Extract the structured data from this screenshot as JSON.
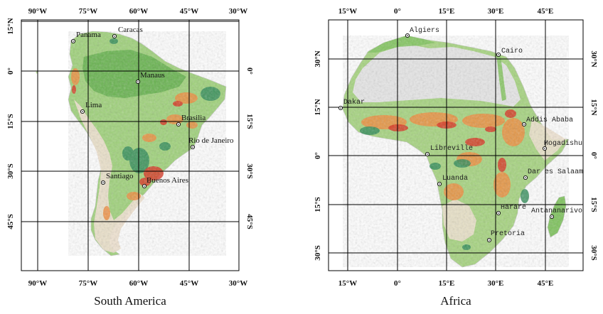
{
  "maps": [
    {
      "caption": "South America",
      "lon_ticks": [
        "90°W",
        "75°W",
        "60°W",
        "45°W",
        "30°W"
      ],
      "lat_ticks": [
        "15°N",
        "0°",
        "15°S",
        "30°S",
        "45°S"
      ],
      "cities": [
        {
          "name": "Panama"
        },
        {
          "name": "Caracas"
        },
        {
          "name": "Manaus"
        },
        {
          "name": "Lima"
        },
        {
          "name": "Brasilia"
        },
        {
          "name": "Rio de Janeiro"
        },
        {
          "name": "Santiago"
        },
        {
          "name": "Buenos Aires"
        }
      ]
    },
    {
      "caption": "Africa",
      "lon_ticks": [
        "15°W",
        "0°",
        "15°E",
        "30°E",
        "45°E"
      ],
      "lat_ticks": [
        "30°N",
        "15°N",
        "0°",
        "15°S",
        "30°S"
      ],
      "cities": [
        {
          "name": "Algiers"
        },
        {
          "name": "Cairo"
        },
        {
          "name": "Dakar"
        },
        {
          "name": "Addis Ababa"
        },
        {
          "name": "Mogadishu"
        },
        {
          "name": "Libreville"
        },
        {
          "name": "Dar es Salaam"
        },
        {
          "name": "Luanda"
        },
        {
          "name": "Harare"
        },
        {
          "name": "Antananarivo"
        },
        {
          "name": "Pretoria"
        }
      ]
    }
  ],
  "colors": {
    "land_green": "#7dc35b",
    "land_light_green": "#b9dc92",
    "land_dark_green": "#2e8b57",
    "land_orange": "#f08c3c",
    "land_red": "#d9331f",
    "desert_gray": "#e6e6e6",
    "arid_beige": "#efe2cf"
  }
}
